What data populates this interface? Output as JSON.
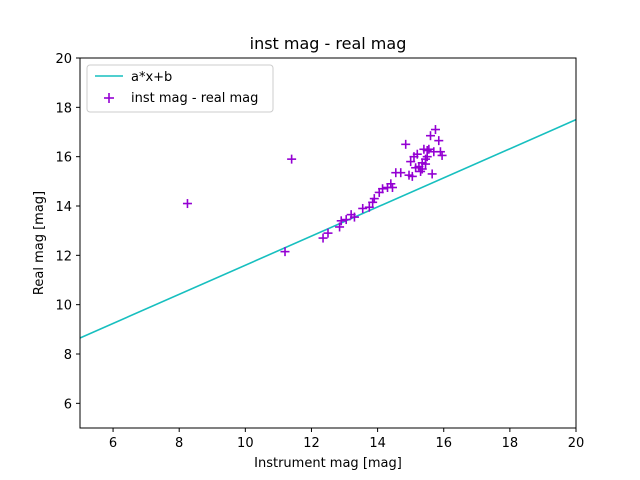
{
  "chart_data": {
    "type": "scatter",
    "title": "inst mag - real mag",
    "xlabel": "Instrument mag [mag]",
    "ylabel": "Real mag [mag]",
    "xlim": [
      5,
      20
    ],
    "ylim": [
      5,
      20
    ],
    "xticks": [
      6,
      8,
      10,
      12,
      14,
      16,
      18,
      20
    ],
    "yticks": [
      6,
      8,
      10,
      12,
      14,
      16,
      18,
      20
    ],
    "grid": false,
    "legend_position": "top-left",
    "series": [
      {
        "name": "a*x+b",
        "kind": "line",
        "color": "#17bfbf",
        "x": [
          5,
          20
        ],
        "y": [
          8.65,
          17.5
        ]
      },
      {
        "name": "inst mag - real mag",
        "kind": "scatter",
        "marker": "+",
        "color": "#9400d3",
        "x": [
          8.25,
          11.2,
          11.4,
          12.35,
          12.5,
          12.85,
          12.9,
          13.05,
          13.2,
          13.3,
          13.55,
          13.75,
          13.85,
          13.9,
          14.05,
          14.15,
          14.3,
          14.4,
          14.45,
          14.55,
          14.7,
          14.85,
          14.95,
          15.0,
          15.05,
          15.1,
          15.15,
          15.2,
          15.25,
          15.3,
          15.35,
          15.35,
          15.4,
          15.45,
          15.45,
          15.5,
          15.55,
          15.6,
          15.65,
          15.7,
          15.75,
          15.85,
          15.9,
          15.95,
          15.5
        ],
        "y": [
          14.1,
          12.15,
          15.9,
          12.7,
          12.9,
          13.15,
          13.4,
          13.45,
          13.65,
          13.55,
          13.9,
          13.95,
          14.15,
          14.3,
          14.55,
          14.7,
          14.75,
          14.9,
          14.75,
          15.35,
          15.35,
          16.5,
          15.25,
          15.8,
          15.2,
          16.0,
          15.55,
          16.1,
          15.6,
          15.4,
          15.75,
          15.5,
          16.3,
          15.7,
          15.9,
          16.25,
          16.3,
          16.85,
          15.3,
          16.2,
          17.1,
          16.65,
          16.2,
          16.05,
          16.0
        ]
      }
    ]
  }
}
